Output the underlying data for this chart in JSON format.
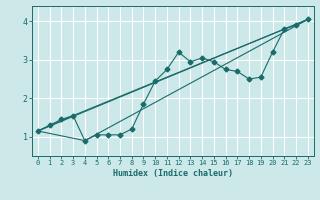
{
  "title": "",
  "xlabel": "Humidex (Indice chaleur)",
  "xlim": [
    -0.5,
    23.5
  ],
  "ylim": [
    0.5,
    4.4
  ],
  "xticks": [
    0,
    1,
    2,
    3,
    4,
    5,
    6,
    7,
    8,
    9,
    10,
    11,
    12,
    13,
    14,
    15,
    16,
    17,
    18,
    19,
    20,
    21,
    22,
    23
  ],
  "yticks": [
    1,
    2,
    3,
    4
  ],
  "background_color": "#cce8e8",
  "grid_color": "#ffffff",
  "line_color": "#1a6b6b",
  "line1_x": [
    0,
    1,
    2,
    3,
    4,
    5,
    6,
    7,
    8,
    9,
    10,
    11,
    12,
    13,
    14,
    15,
    16,
    17,
    18,
    19,
    20,
    21,
    22,
    23
  ],
  "line1_y": [
    1.15,
    1.3,
    1.45,
    1.55,
    0.9,
    1.05,
    1.05,
    1.05,
    1.2,
    1.85,
    2.45,
    2.75,
    3.2,
    2.95,
    3.05,
    2.95,
    2.75,
    2.7,
    2.5,
    2.55,
    3.2,
    3.8,
    3.9,
    4.05
  ],
  "line2_x": [
    0,
    3,
    23
  ],
  "line2_y": [
    1.15,
    1.55,
    4.05
  ],
  "line3_x": [
    0,
    4,
    23
  ],
  "line3_y": [
    1.15,
    0.9,
    4.05
  ],
  "line4_x": [
    0,
    23
  ],
  "line4_y": [
    1.15,
    4.05
  ],
  "markersize": 2.5,
  "linewidth": 0.8
}
